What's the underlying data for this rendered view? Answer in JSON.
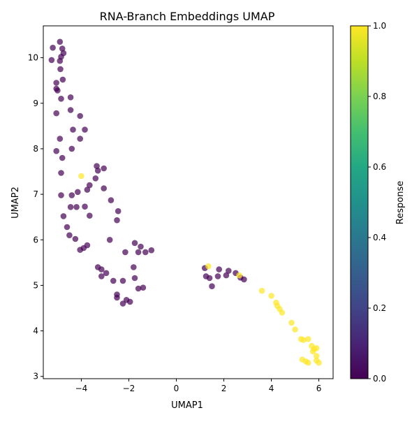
{
  "chart_data": {
    "type": "scatter",
    "title": "RNA-Branch Embeddings UMAP",
    "xlabel": "UMAP1",
    "ylabel": "UMAP2",
    "xlim": [
      -5.6,
      6.6
    ],
    "ylim": [
      2.95,
      10.7
    ],
    "xticks": [
      -4,
      -2,
      0,
      2,
      4,
      6
    ],
    "yticks": [
      3,
      4,
      5,
      6,
      7,
      8,
      9,
      10
    ],
    "grid": false,
    "point_alpha": 0.7,
    "colorbar": {
      "label": "Response",
      "range": [
        0,
        1
      ],
      "ticks": [
        0.0,
        0.2,
        0.4,
        0.6,
        0.8,
        1.0
      ],
      "colormap": "viridis"
    },
    "series": [
      {
        "response": 0,
        "color": "#440154",
        "points": [
          [
            -4.9,
            10.35
          ],
          [
            -5.2,
            10.22
          ],
          [
            -4.8,
            10.2
          ],
          [
            -4.75,
            10.1
          ],
          [
            -4.85,
            10.02
          ],
          [
            -5.25,
            9.95
          ],
          [
            -4.9,
            9.93
          ],
          [
            -4.88,
            9.75
          ],
          [
            -4.78,
            9.52
          ],
          [
            -5.05,
            9.45
          ],
          [
            -5.05,
            9.32
          ],
          [
            -5.0,
            9.28
          ],
          [
            -4.45,
            9.13
          ],
          [
            -4.85,
            9.1
          ],
          [
            -4.45,
            8.85
          ],
          [
            -5.05,
            8.78
          ],
          [
            -4.05,
            8.72
          ],
          [
            -4.35,
            8.42
          ],
          [
            -3.85,
            8.42
          ],
          [
            -4.05,
            8.22
          ],
          [
            -4.9,
            8.22
          ],
          [
            -4.4,
            8.0
          ],
          [
            -5.05,
            7.95
          ],
          [
            -4.8,
            7.8
          ],
          [
            -3.35,
            7.62
          ],
          [
            -3.3,
            7.52
          ],
          [
            -3.05,
            7.57
          ],
          [
            -4.85,
            7.47
          ],
          [
            -3.4,
            7.35
          ],
          [
            -3.65,
            7.2
          ],
          [
            -3.05,
            7.13
          ],
          [
            -3.75,
            7.1
          ],
          [
            -4.15,
            7.05
          ],
          [
            -4.4,
            6.98
          ],
          [
            -4.85,
            6.98
          ],
          [
            -2.75,
            6.87
          ],
          [
            -3.85,
            6.73
          ],
          [
            -4.2,
            6.72
          ],
          [
            -4.45,
            6.72
          ],
          [
            -2.45,
            6.63
          ],
          [
            -4.75,
            6.52
          ],
          [
            -3.65,
            6.53
          ],
          [
            -2.5,
            6.43
          ],
          [
            -4.6,
            6.28
          ],
          [
            -4.5,
            6.1
          ],
          [
            -4.25,
            6.02
          ],
          [
            -2.8,
            6.0
          ],
          [
            -1.75,
            5.93
          ],
          [
            -3.75,
            5.88
          ],
          [
            -3.9,
            5.82
          ],
          [
            -1.5,
            5.85
          ],
          [
            -4.05,
            5.78
          ],
          [
            -1.05,
            5.77
          ],
          [
            -1.6,
            5.73
          ],
          [
            -1.3,
            5.73
          ],
          [
            -2.15,
            5.73
          ],
          [
            -3.3,
            5.4
          ],
          [
            -3.15,
            5.35
          ],
          [
            -1.8,
            5.4
          ],
          [
            -2.95,
            5.27
          ],
          [
            -3.15,
            5.2
          ],
          [
            -1.75,
            5.16
          ],
          [
            -2.65,
            5.1
          ],
          [
            -2.25,
            5.1
          ],
          [
            -1.4,
            4.95
          ],
          [
            -1.6,
            4.93
          ],
          [
            -2.5,
            4.8
          ],
          [
            -2.5,
            4.73
          ],
          [
            -2.1,
            4.68
          ],
          [
            -1.95,
            4.64
          ],
          [
            -2.25,
            4.6
          ],
          [
            1.2,
            5.38
          ],
          [
            1.8,
            5.35
          ],
          [
            2.2,
            5.32
          ],
          [
            2.5,
            5.27
          ],
          [
            1.25,
            5.2
          ],
          [
            1.75,
            5.2
          ],
          [
            2.1,
            5.22
          ],
          [
            1.4,
            5.16
          ],
          [
            2.7,
            5.17
          ],
          [
            2.85,
            5.13
          ],
          [
            1.5,
            4.98
          ]
        ]
      },
      {
        "response": 1,
        "color": "#fde725",
        "points": [
          [
            -4.0,
            7.4
          ],
          [
            1.35,
            5.42
          ],
          [
            2.65,
            5.22
          ],
          [
            3.6,
            4.88
          ],
          [
            4.0,
            4.77
          ],
          [
            4.2,
            4.62
          ],
          [
            4.25,
            4.55
          ],
          [
            4.35,
            4.48
          ],
          [
            4.45,
            4.4
          ],
          [
            4.85,
            4.18
          ],
          [
            5.0,
            4.03
          ],
          [
            5.25,
            3.82
          ],
          [
            5.35,
            3.8
          ],
          [
            5.55,
            3.82
          ],
          [
            5.7,
            3.67
          ],
          [
            5.8,
            3.6
          ],
          [
            5.9,
            3.62
          ],
          [
            5.75,
            3.55
          ],
          [
            5.9,
            3.45
          ],
          [
            5.3,
            3.37
          ],
          [
            5.45,
            3.33
          ],
          [
            5.55,
            3.3
          ],
          [
            5.9,
            3.35
          ],
          [
            6.0,
            3.3
          ]
        ]
      }
    ]
  }
}
